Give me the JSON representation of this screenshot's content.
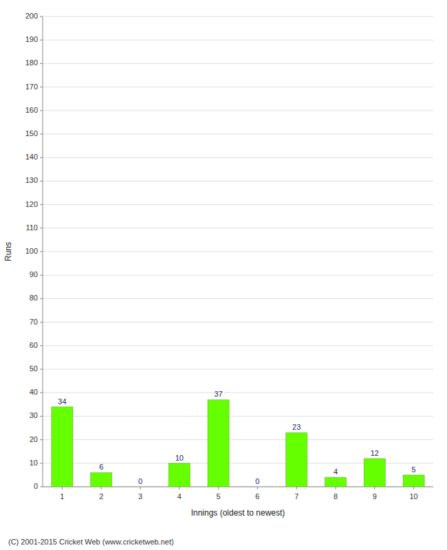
{
  "chart_data": {
    "type": "bar",
    "xlabel": "Innings (oldest to newest)",
    "ylabel": "Runs",
    "categories": [
      "1",
      "2",
      "3",
      "4",
      "5",
      "6",
      "7",
      "8",
      "9",
      "10"
    ],
    "values": [
      34,
      6,
      0,
      10,
      37,
      0,
      23,
      4,
      12,
      5
    ],
    "color": "#66ff00",
    "ylim": [
      0,
      200
    ],
    "yticks": [
      0,
      10,
      20,
      30,
      40,
      50,
      60,
      70,
      80,
      90,
      100,
      110,
      120,
      130,
      140,
      150,
      160,
      170,
      180,
      190,
      200
    ],
    "grid": true,
    "data_labels": true,
    "footer": "(C) 2001-2015 Cricket Web (www.cricketweb.net)"
  }
}
